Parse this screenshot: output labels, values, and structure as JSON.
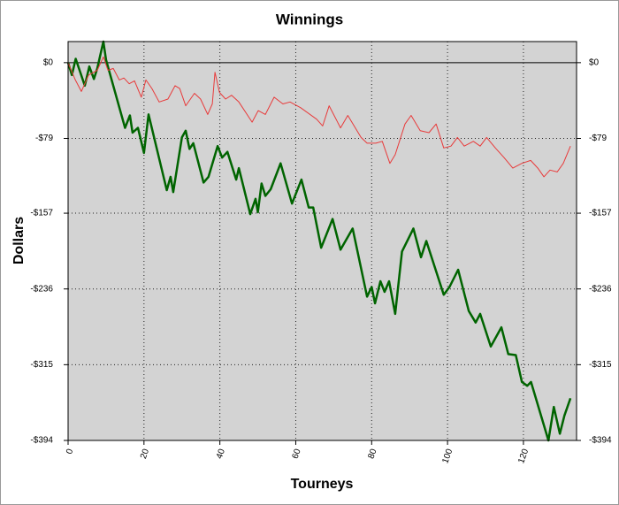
{
  "chart_data": {
    "type": "line",
    "title": "Winnings",
    "x_label": "Tourneys",
    "y_label": "Dollars",
    "xlim": [
      0,
      134
    ],
    "xticks": [
      0,
      20,
      40,
      60,
      80,
      100,
      120
    ],
    "ylim": [
      -394,
      22
    ],
    "yticks": [
      {
        "value": 0,
        "label": "$0"
      },
      {
        "value": -79,
        "label": "-$79"
      },
      {
        "value": -157,
        "label": "-$157"
      },
      {
        "value": -236,
        "label": "-$236"
      },
      {
        "value": -315,
        "label": "-$315"
      },
      {
        "value": -394,
        "label": "-$394"
      }
    ],
    "grid": true,
    "series": [
      {
        "color": "#006400",
        "width": 2.5,
        "x": [
          0,
          1,
          2,
          4.4,
          5.6,
          6.8,
          7.7,
          9.3,
          10,
          15,
          16.3,
          17,
          18.4,
          20,
          21.2,
          26,
          27,
          27.7,
          30,
          31,
          32,
          33,
          35.7,
          37,
          39.4,
          40.6,
          42,
          44.3,
          45,
          48,
          49.4,
          50,
          51,
          52,
          53.4,
          56,
          59,
          61.5,
          63.4,
          64.6,
          66.7,
          69.7,
          71.8,
          75,
          78.8,
          80,
          80.9,
          82.3,
          83.4,
          84.6,
          86.2,
          88,
          91,
          93,
          94.4,
          99,
          100.5,
          102.8,
          105.6,
          107.4,
          108.6,
          111.4,
          114.2,
          116,
          118,
          119.6,
          121,
          122,
          126.6,
          128,
          129.6,
          130.8,
          132.4
        ],
        "values": [
          0,
          -13,
          4,
          -24,
          -4,
          -17,
          -6,
          22,
          3,
          -68,
          -55,
          -73,
          -68,
          -94,
          -54,
          -133,
          -119,
          -135,
          -78,
          -71,
          -90,
          -84,
          -125,
          -119,
          -87,
          -99,
          -93,
          -122,
          -110,
          -158,
          -142,
          -156,
          -126,
          -139,
          -132,
          -105,
          -147,
          -122,
          -151,
          -151,
          -193,
          -163,
          -195,
          -173,
          -244,
          -234,
          -251,
          -228,
          -239,
          -228,
          -262,
          -197,
          -173,
          -203,
          -186,
          -242,
          -234,
          -216,
          -259,
          -271,
          -262,
          -296,
          -276,
          -304,
          -305,
          -333,
          -337,
          -333,
          -394,
          -359,
          -387,
          -368,
          -350
        ]
      },
      {
        "color": "#e83a3a",
        "width": 1,
        "x": [
          0,
          1.9,
          3.5,
          5.4,
          7.7,
          9.3,
          10.5,
          11.9,
          13.5,
          14.7,
          16.1,
          17.5,
          19.3,
          20.5,
          22.1,
          24,
          26.3,
          28.2,
          29.4,
          31,
          33.3,
          34.9,
          36.8,
          38,
          38.7,
          39.9,
          41.5,
          43.1,
          45,
          48.5,
          50.1,
          52,
          54.3,
          56.6,
          58.5,
          61.3,
          65.5,
          67.1,
          68.8,
          71.8,
          73.7,
          77.2,
          78.8,
          81.1,
          82.8,
          84.8,
          86.2,
          88.8,
          90.4,
          92.8,
          95.1,
          97,
          99,
          100.9,
          102.6,
          104.4,
          106.8,
          108.6,
          110.3,
          112.6,
          114.9,
          117.2,
          119.6,
          121.9,
          123.8,
          125.4,
          127,
          128.9,
          130.5,
          132.4
        ],
        "values": [
          0,
          -18,
          -30,
          -13,
          -8,
          6,
          -8,
          -6,
          -18,
          -16,
          -22,
          -19,
          -36,
          -18,
          -27,
          -41,
          -38,
          -24,
          -27,
          -45,
          -32,
          -38,
          -54,
          -43,
          -10,
          -31,
          -38,
          -34,
          -41,
          -62,
          -50,
          -54,
          -36,
          -43,
          -41,
          -47,
          -59,
          -66,
          -45,
          -68,
          -55,
          -78,
          -84,
          -84,
          -82,
          -105,
          -96,
          -64,
          -55,
          -71,
          -73,
          -64,
          -89,
          -87,
          -78,
          -87,
          -82,
          -87,
          -78,
          -89,
          -99,
          -110,
          -105,
          -102,
          -110,
          -119,
          -112,
          -114,
          -105,
          -87
        ]
      }
    ]
  }
}
